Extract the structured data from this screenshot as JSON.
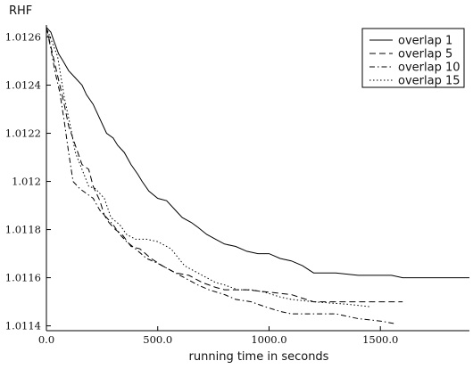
{
  "chart_data": {
    "type": "line",
    "xlabel": "running time in seconds",
    "ylabel": "RHF",
    "xlim": [
      0,
      1900
    ],
    "ylim": [
      1.01138,
      1.01265
    ],
    "xticks": [
      0,
      500,
      1000,
      1500
    ],
    "xtick_labels": [
      "0.0",
      "500.0",
      "1000.0",
      "1500.0"
    ],
    "yticks": [
      1.0114,
      1.0116,
      1.0118,
      1.012,
      1.0122,
      1.0124,
      1.0126
    ],
    "ytick_labels": [
      "1.0114",
      "1.0116",
      "1.0118",
      "1.012",
      "1.0122",
      "1.0124",
      "1.0126"
    ],
    "grid": false,
    "legend_position": "top-right",
    "series": [
      {
        "name": "overlap 1",
        "dash": "",
        "points": [
          [
            0,
            1.01264
          ],
          [
            20,
            1.01262
          ],
          [
            35,
            1.01258
          ],
          [
            55,
            1.01253
          ],
          [
            75,
            1.0125
          ],
          [
            100,
            1.01246
          ],
          [
            130,
            1.01243
          ],
          [
            160,
            1.0124
          ],
          [
            180,
            1.01236
          ],
          [
            210,
            1.01232
          ],
          [
            240,
            1.01226
          ],
          [
            270,
            1.0122
          ],
          [
            300,
            1.01218
          ],
          [
            320,
            1.01215
          ],
          [
            350,
            1.01212
          ],
          [
            380,
            1.01207
          ],
          [
            410,
            1.01203
          ],
          [
            430,
            1.012
          ],
          [
            460,
            1.01196
          ],
          [
            500,
            1.01193
          ],
          [
            540,
            1.01192
          ],
          [
            580,
            1.01188
          ],
          [
            610,
            1.01185
          ],
          [
            650,
            1.01183
          ],
          [
            680,
            1.01181
          ],
          [
            720,
            1.01178
          ],
          [
            760,
            1.01176
          ],
          [
            800,
            1.01174
          ],
          [
            850,
            1.01173
          ],
          [
            900,
            1.01171
          ],
          [
            950,
            1.0117
          ],
          [
            1000,
            1.0117
          ],
          [
            1050,
            1.01168
          ],
          [
            1100,
            1.01167
          ],
          [
            1150,
            1.01165
          ],
          [
            1200,
            1.01162
          ],
          [
            1300,
            1.01162
          ],
          [
            1400,
            1.01161
          ],
          [
            1550,
            1.01161
          ],
          [
            1600,
            1.0116
          ],
          [
            1900,
            1.0116
          ]
        ]
      },
      {
        "name": "overlap 5",
        "dash": "7,4",
        "points": [
          [
            0,
            1.01264
          ],
          [
            20,
            1.01256
          ],
          [
            40,
            1.01248
          ],
          [
            60,
            1.0124
          ],
          [
            80,
            1.01232
          ],
          [
            100,
            1.01223
          ],
          [
            130,
            1.01215
          ],
          [
            160,
            1.01207
          ],
          [
            190,
            1.01205
          ],
          [
            210,
            1.01198
          ],
          [
            240,
            1.01192
          ],
          [
            260,
            1.01186
          ],
          [
            280,
            1.01183
          ],
          [
            310,
            1.0118
          ],
          [
            340,
            1.01178
          ],
          [
            380,
            1.01173
          ],
          [
            420,
            1.01172
          ],
          [
            470,
            1.01168
          ],
          [
            520,
            1.01165
          ],
          [
            580,
            1.01162
          ],
          [
            640,
            1.01161
          ],
          [
            700,
            1.01158
          ],
          [
            760,
            1.01156
          ],
          [
            800,
            1.01155
          ],
          [
            900,
            1.01155
          ],
          [
            1000,
            1.01154
          ],
          [
            1100,
            1.01153
          ],
          [
            1200,
            1.0115
          ],
          [
            1400,
            1.0115
          ],
          [
            1600,
            1.0115
          ]
        ]
      },
      {
        "name": "overlap 10",
        "dash": "6,3,1.5,3",
        "points": [
          [
            0,
            1.01264
          ],
          [
            20,
            1.01255
          ],
          [
            40,
            1.01245
          ],
          [
            60,
            1.01237
          ],
          [
            80,
            1.01225
          ],
          [
            100,
            1.01212
          ],
          [
            120,
            1.012
          ],
          [
            150,
            1.01197
          ],
          [
            180,
            1.01195
          ],
          [
            210,
            1.01193
          ],
          [
            240,
            1.01188
          ],
          [
            270,
            1.01185
          ],
          [
            300,
            1.01182
          ],
          [
            330,
            1.01178
          ],
          [
            360,
            1.01175
          ],
          [
            400,
            1.01172
          ],
          [
            450,
            1.01168
          ],
          [
            500,
            1.01166
          ],
          [
            560,
            1.01163
          ],
          [
            620,
            1.0116
          ],
          [
            680,
            1.01157
          ],
          [
            730,
            1.01155
          ],
          [
            800,
            1.01153
          ],
          [
            850,
            1.01151
          ],
          [
            920,
            1.0115
          ],
          [
            980,
            1.01148
          ],
          [
            1050,
            1.01146
          ],
          [
            1100,
            1.01145
          ],
          [
            1200,
            1.01145
          ],
          [
            1300,
            1.01145
          ],
          [
            1400,
            1.01143
          ],
          [
            1500,
            1.01142
          ],
          [
            1560,
            1.01141
          ]
        ]
      },
      {
        "name": "overlap 15",
        "dash": "1.5,2.5",
        "points": [
          [
            0,
            1.01264
          ],
          [
            25,
            1.01258
          ],
          [
            50,
            1.01252
          ],
          [
            80,
            1.01235
          ],
          [
            110,
            1.01222
          ],
          [
            130,
            1.01212
          ],
          [
            160,
            1.01205
          ],
          [
            190,
            1.01198
          ],
          [
            220,
            1.01197
          ],
          [
            260,
            1.01193
          ],
          [
            290,
            1.01185
          ],
          [
            330,
            1.01182
          ],
          [
            360,
            1.01178
          ],
          [
            400,
            1.01176
          ],
          [
            450,
            1.01176
          ],
          [
            500,
            1.01175
          ],
          [
            560,
            1.01172
          ],
          [
            620,
            1.01165
          ],
          [
            680,
            1.01162
          ],
          [
            720,
            1.0116
          ],
          [
            760,
            1.01158
          ],
          [
            800,
            1.01157
          ],
          [
            860,
            1.01155
          ],
          [
            920,
            1.01155
          ],
          [
            980,
            1.01154
          ],
          [
            1050,
            1.01152
          ],
          [
            1100,
            1.01151
          ],
          [
            1200,
            1.0115
          ],
          [
            1350,
            1.01149
          ],
          [
            1450,
            1.01148
          ]
        ]
      }
    ]
  }
}
